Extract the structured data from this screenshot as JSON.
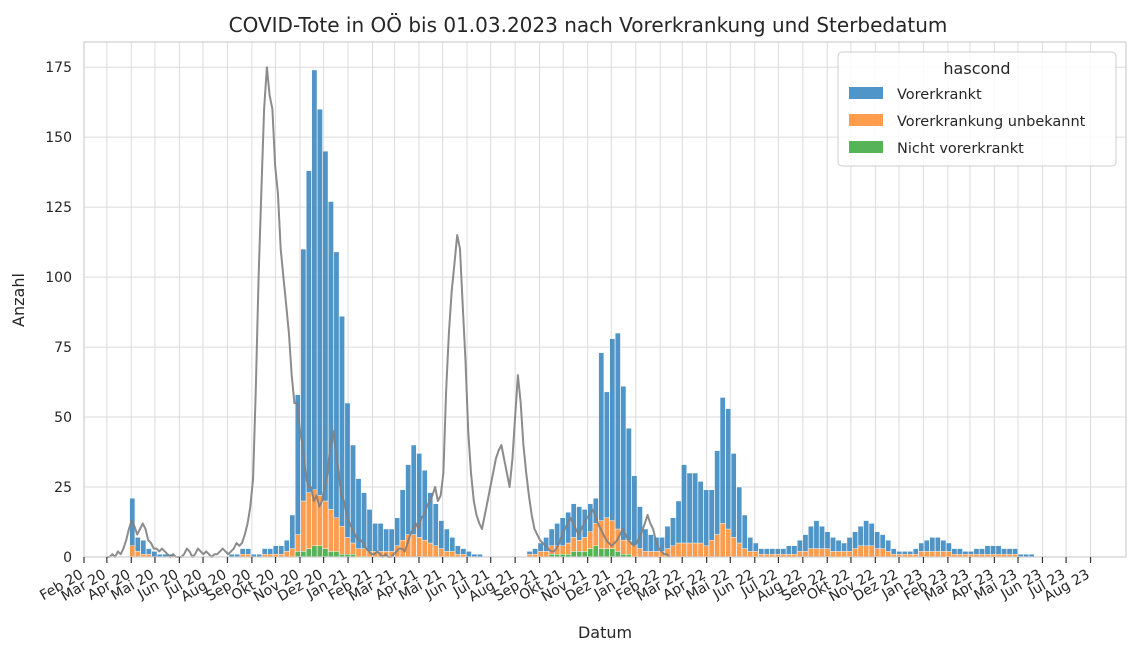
{
  "chart_data": {
    "type": "bar",
    "stacked": true,
    "title": "COVID-Tote in OÖ bis 01.03.2023 nach Vorerkrankung und Sterbedatum",
    "xlabel": "Datum",
    "ylabel": "Anzahl",
    "ylim": [
      0,
      184
    ],
    "yticks": [
      0,
      25,
      50,
      75,
      100,
      125,
      150,
      175
    ],
    "grid": true,
    "x_tick_labels": [
      "Feb 20",
      "Mar 20",
      "Apr 20",
      "Mai 20",
      "Jun 20",
      "Jul 20",
      "Aug 20",
      "Sep 20",
      "Okt 20",
      "Nov 20",
      "Dez 20",
      "Jan 21",
      "Feb 21",
      "Mar 21",
      "Apr 21",
      "Mai 21",
      "Jun 21",
      "Jul 21",
      "Aug 21",
      "Sep 21",
      "Okt 21",
      "Nov 21",
      "Dez 21",
      "Jan 22",
      "Feb 22",
      "Mar 22",
      "Apr 22",
      "Mai 22",
      "Jun 22",
      "Jul 22",
      "Aug 22",
      "Sep 22",
      "Okt 22",
      "Nov 22",
      "Dez 22",
      "Jan 23",
      "Feb 23",
      "Mar 23",
      "Apr 23",
      "Mai 23",
      "Jun 23",
      "Jul 23",
      "Aug 23"
    ],
    "legend": {
      "title": "hascond",
      "placement": "top-right",
      "entries": [
        "Vorerkrankt",
        "Vorerkrankung unbekannt",
        "Nicht vorerkrankt"
      ]
    },
    "colors": {
      "Vorerkrankt": "#3182bd",
      "Vorerkrankung unbekannt": "#ff8c2f",
      "Nicht vorerkrankt": "#3aa63a",
      "line": "#808080"
    },
    "week_start": "2020-03-02",
    "series": [
      {
        "name": "Vorerkrankt",
        "values": [
          0,
          0,
          0,
          0,
          17,
          5,
          5,
          2,
          2,
          1,
          1,
          1,
          0,
          0,
          0,
          0,
          0,
          0,
          0,
          0,
          0,
          0,
          1,
          1,
          2,
          2,
          1,
          1,
          2,
          2,
          3,
          3,
          4,
          12,
          50,
          90,
          115,
          150,
          138,
          125,
          110,
          95,
          75,
          48,
          35,
          25,
          20,
          15,
          10,
          10,
          8,
          8,
          10,
          18,
          25,
          32,
          30,
          25,
          18,
          15,
          10,
          8,
          5,
          3,
          2,
          2,
          1,
          1,
          0,
          0,
          0,
          0,
          0,
          0,
          0,
          0,
          1,
          2,
          3,
          5,
          6,
          8,
          10,
          11,
          12,
          12,
          10,
          10,
          9,
          60,
          45,
          65,
          70,
          55,
          40,
          25,
          15,
          8,
          6,
          5,
          5,
          8,
          10,
          15,
          28,
          25,
          25,
          22,
          20,
          18,
          30,
          45,
          43,
          30,
          20,
          12,
          5,
          3,
          2,
          2,
          2,
          2,
          2,
          3,
          3,
          4,
          6,
          8,
          10,
          8,
          6,
          5,
          4,
          3,
          5,
          6,
          7,
          9,
          8,
          6,
          5,
          4,
          2,
          1,
          1,
          1,
          2,
          3,
          4,
          5,
          5,
          4,
          3,
          2,
          2,
          1,
          1,
          2,
          2,
          3,
          3,
          3,
          2,
          2,
          2,
          1,
          1,
          1,
          0,
          0,
          0,
          0,
          0
        ]
      },
      {
        "name": "Vorerkrankung unbekannt",
        "values": [
          0,
          0,
          0,
          0,
          4,
          2,
          1,
          1,
          0,
          0,
          0,
          0,
          0,
          0,
          0,
          0,
          0,
          0,
          0,
          0,
          0,
          0,
          0,
          0,
          1,
          1,
          0,
          0,
          1,
          1,
          1,
          1,
          2,
          3,
          6,
          18,
          20,
          20,
          18,
          17,
          15,
          12,
          10,
          6,
          4,
          3,
          3,
          2,
          2,
          2,
          2,
          2,
          4,
          6,
          8,
          8,
          7,
          6,
          5,
          4,
          3,
          2,
          2,
          1,
          1,
          0,
          0,
          0,
          0,
          0,
          0,
          0,
          0,
          0,
          0,
          0,
          1,
          1,
          2,
          2,
          3,
          3,
          3,
          4,
          5,
          4,
          5,
          6,
          8,
          10,
          11,
          10,
          8,
          5,
          5,
          4,
          3,
          2,
          2,
          2,
          2,
          3,
          4,
          5,
          5,
          5,
          5,
          5,
          4,
          6,
          8,
          12,
          10,
          7,
          5,
          3,
          2,
          2,
          1,
          1,
          1,
          1,
          1,
          1,
          1,
          2,
          2,
          3,
          3,
          3,
          3,
          2,
          2,
          2,
          2,
          3,
          4,
          4,
          4,
          3,
          3,
          2,
          1,
          1,
          1,
          1,
          1,
          2,
          2,
          2,
          2,
          2,
          2,
          1,
          1,
          1,
          1,
          1,
          1,
          1,
          1,
          1,
          1,
          1,
          1,
          0,
          0,
          0,
          0,
          0,
          0,
          0,
          0
        ]
      },
      {
        "name": "Nicht vorerkrankt",
        "values": [
          0,
          0,
          0,
          0,
          0,
          0,
          0,
          0,
          0,
          0,
          0,
          0,
          0,
          0,
          0,
          0,
          0,
          0,
          0,
          0,
          0,
          0,
          0,
          0,
          0,
          0,
          0,
          0,
          0,
          0,
          0,
          0,
          0,
          0,
          2,
          2,
          3,
          4,
          4,
          3,
          2,
          2,
          1,
          1,
          1,
          0,
          0,
          0,
          0,
          0,
          0,
          0,
          0,
          0,
          0,
          0,
          0,
          0,
          0,
          0,
          0,
          0,
          0,
          0,
          0,
          0,
          0,
          0,
          0,
          0,
          0,
          0,
          0,
          0,
          0,
          0,
          0,
          0,
          0,
          0,
          1,
          1,
          1,
          1,
          2,
          2,
          2,
          3,
          4,
          3,
          3,
          3,
          2,
          1,
          1,
          0,
          0,
          0,
          0,
          0,
          0,
          0,
          0,
          0,
          0,
          0,
          0,
          0,
          0,
          0,
          0,
          0,
          0,
          0,
          0,
          0,
          0,
          0,
          0,
          0,
          0,
          0,
          0,
          0,
          0,
          0,
          0,
          0,
          0,
          0,
          0,
          0,
          0,
          0,
          0,
          0,
          0,
          0,
          0,
          0,
          0,
          0,
          0,
          0,
          0,
          0,
          0,
          0,
          0,
          0,
          0,
          0,
          0,
          0,
          0,
          0,
          0,
          0,
          0,
          0,
          0,
          0,
          0,
          0,
          0,
          0,
          0,
          0,
          0,
          0,
          0,
          0,
          0
        ]
      }
    ],
    "line": {
      "start": "2020-03-01",
      "step_days": 3.5,
      "values": [
        0,
        0,
        1,
        0,
        2,
        1,
        3,
        6,
        10,
        13,
        11,
        8,
        10,
        12,
        10,
        6,
        5,
        3,
        3,
        2,
        3,
        2,
        1,
        0,
        1,
        0,
        0,
        0,
        1,
        3,
        2,
        0,
        1,
        3,
        2,
        1,
        2,
        1,
        0,
        1,
        1,
        2,
        3,
        2,
        1,
        2,
        3,
        5,
        4,
        5,
        8,
        12,
        18,
        28,
        60,
        100,
        130,
        160,
        175,
        165,
        160,
        140,
        130,
        110,
        100,
        90,
        80,
        65,
        55,
        55,
        45,
        40,
        30,
        25,
        25,
        20,
        22,
        18,
        20,
        25,
        30,
        40,
        45,
        38,
        30,
        22,
        20,
        15,
        12,
        10,
        8,
        6,
        6,
        5,
        3,
        2,
        1,
        1,
        2,
        1,
        0,
        1,
        0,
        0,
        1,
        2,
        3,
        3,
        2,
        5,
        8,
        10,
        12,
        10,
        14,
        15,
        18,
        20,
        22,
        25,
        20,
        22,
        30,
        60,
        80,
        95,
        105,
        115,
        110,
        90,
        70,
        45,
        30,
        20,
        15,
        12,
        10,
        15,
        20,
        25,
        30,
        35,
        38,
        40,
        35,
        30,
        25,
        35,
        50,
        65,
        55,
        40,
        30,
        22,
        15,
        10,
        8,
        6,
        5,
        4,
        3,
        2,
        2,
        3,
        5,
        8,
        10,
        12,
        14,
        12,
        10,
        8,
        10,
        12,
        14,
        15,
        17,
        15,
        12,
        10,
        8,
        6,
        5,
        4,
        5,
        6,
        8,
        10,
        8,
        6,
        5,
        4,
        5,
        7,
        9,
        12,
        15,
        12,
        10,
        6,
        3,
        2,
        1,
        1,
        0
      ]
    }
  }
}
